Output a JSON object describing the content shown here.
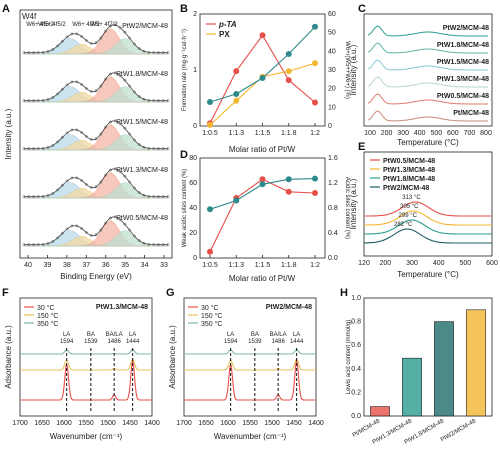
{
  "chart_data": [
    {
      "panel": "A",
      "type": "line",
      "corner_label": "W4f",
      "xlabel": "Binding Energy (eV)",
      "ylabel": "Intensity (a.u.)",
      "x_ticks": [
        "40",
        "39",
        "38",
        "37",
        "36",
        "35",
        "34",
        "33"
      ],
      "peak_labels": [
        "W6+ 4f5/2",
        "W5+ 4f5/2",
        "W6+ 4f7/2",
        "W5+ 4f7/2"
      ],
      "series": [
        {
          "name": "PtW2/MCM-48"
        },
        {
          "name": "PtW1.8/MCM-48"
        },
        {
          "name": "PtW1.5/MCM-48"
        },
        {
          "name": "PtW1.3/MCM-48"
        },
        {
          "name": "PtW0.5/MCM-48"
        }
      ]
    },
    {
      "panel": "B",
      "type": "line",
      "xlabel": "Molar ratio of Pt/W",
      "ylabel": "Formation rate (mg·g⁻¹cat·h⁻¹)",
      "ylabel_right": "W6+/(W5++W6+) (%)",
      "categories": [
        "1:0.5",
        "1:1.3",
        "1:1.5",
        "1:1.8",
        "1:2"
      ],
      "y_ticks": [
        "0",
        "1",
        "2"
      ],
      "y_ticks_right": [
        "0",
        "10",
        "20",
        "30",
        "40",
        "50",
        "60"
      ],
      "series": [
        {
          "name": "p-TA",
          "color": "#e8504a",
          "values": [
            0.05,
            0.98,
            1.62,
            0.82,
            0.42
          ]
        },
        {
          "name": "PX",
          "color": "#f3b733",
          "values": [
            0.02,
            0.45,
            0.88,
            0.98,
            1.12
          ]
        },
        {
          "color": "#2e8a8c",
          "axis": "right",
          "values": [
            15,
            20,
            30,
            45,
            62
          ]
        }
      ]
    },
    {
      "panel": "C",
      "type": "line",
      "xlabel": "Temperature (°C)",
      "ylabel": "Intensity (a.u.)",
      "x_ticks": [
        "100",
        "200",
        "300",
        "400",
        "500",
        "600",
        "700",
        "800"
      ],
      "series": [
        {
          "name": "PtW2/MCM-48",
          "color": "#2a9d8f"
        },
        {
          "name": "PtW1.8/MCM-48",
          "color": "#5cb3a6"
        },
        {
          "name": "PtW1.5/MCM-48",
          "color": "#8cc5d6"
        },
        {
          "name": "PtW1.3/MCM-48",
          "color": "#b6d6c8"
        },
        {
          "name": "PtW0.5/MCM-48",
          "color": "#e07b6a"
        },
        {
          "name": "Pt/MCM-48",
          "color": "#c98b7a"
        }
      ]
    },
    {
      "panel": "D",
      "type": "line",
      "xlabel": "Molar ratio of Pt/W",
      "ylabel": "Weak acidic sites content (%)",
      "ylabel_right": "Acidic sites content (%)",
      "categories": [
        "1:0.5",
        "1:1.3",
        "1:1.5",
        "1:1.8",
        "1:2"
      ],
      "y_ticks": [
        "0",
        "20",
        "40",
        "60",
        "80"
      ],
      "y_ticks_right": [
        "0.0",
        "0.4",
        "0.8",
        "1.2",
        "1.6"
      ],
      "series": [
        {
          "color": "#e8504a",
          "values": [
            5,
            48,
            63,
            53,
            52
          ]
        },
        {
          "color": "#2e8a8c",
          "axis": "right",
          "values": [
            0.78,
            0.92,
            1.18,
            1.26,
            1.27
          ]
        }
      ]
    },
    {
      "panel": "E",
      "type": "line",
      "xlabel": "Temperature (°C)",
      "ylabel": "Intensity (a.u.)",
      "x_ticks": [
        "120",
        "200",
        "300",
        "400",
        "500",
        "600"
      ],
      "annotations": [
        "313 °C",
        "305 °C",
        "299 °C",
        "282 °C"
      ],
      "series": [
        {
          "name": "PtW0.5/MCM-48",
          "color": "#e8504a",
          "peak": 313
        },
        {
          "name": "PtW1.3/MCM-48",
          "color": "#f3b733",
          "peak": 305
        },
        {
          "name": "PtW1.8/MCM-48",
          "color": "#2a9d8f",
          "peak": 299
        },
        {
          "name": "PtW2/MCM-48",
          "color": "#1f5c66",
          "peak": 282
        }
      ]
    },
    {
      "panel": "F",
      "type": "line",
      "inset_label": "PtW1.3/MCM-48",
      "xlabel": "Wavenumber (cm⁻¹)",
      "ylabel": "Adsorbance (a.u.)",
      "x_ticks": [
        "1700",
        "1650",
        "1600",
        "1550",
        "1500",
        "1450",
        "1400"
      ],
      "band_labels": [
        {
          "name": "LA",
          "value": "1594"
        },
        {
          "name": "BA",
          "value": "1539"
        },
        {
          "name": "BA/LA",
          "value": "1486"
        },
        {
          "name": "LA",
          "value": "1444"
        }
      ],
      "series": [
        {
          "name": "30 °C",
          "color": "#e8504a"
        },
        {
          "name": "150 °C",
          "color": "#e8c15a"
        },
        {
          "name": "350 °C",
          "color": "#7fb8a8"
        }
      ]
    },
    {
      "panel": "G",
      "type": "line",
      "inset_label": "PtW2/MCM-48",
      "xlabel": "Wavenumber (cm⁻¹)",
      "ylabel": "Adsorbance (a.u.)",
      "x_ticks": [
        "1700",
        "1650",
        "1600",
        "1550",
        "1500",
        "1450",
        "1400"
      ],
      "band_labels": [
        {
          "name": "LA",
          "value": "1594"
        },
        {
          "name": "BA",
          "value": "1539"
        },
        {
          "name": "BA/LA",
          "value": "1486"
        },
        {
          "name": "LA",
          "value": "1444"
        }
      ],
      "series": [
        {
          "name": "30 °C",
          "color": "#e8504a"
        },
        {
          "name": "150 °C",
          "color": "#e8c15a"
        },
        {
          "name": "350 °C",
          "color": "#7fb8a8"
        }
      ]
    },
    {
      "panel": "H",
      "type": "bar",
      "ylabel": "Lewis acid content (mmol/g)",
      "y_ticks": [
        "0.0",
        "0.2",
        "0.4",
        "0.6",
        "0.8",
        "1.0"
      ],
      "ylim": [
        0,
        1.0
      ],
      "categories": [
        "Pt/MCM-48",
        "PtW1.3/MCM-48",
        "PtW1.8/MCM-48",
        "PtW2/MCM-48"
      ],
      "values": [
        0.08,
        0.49,
        0.8,
        0.9
      ],
      "colors": [
        "#e8504a",
        "#2a9d8f",
        "#1f6d6b",
        "#f3b733"
      ]
    }
  ]
}
